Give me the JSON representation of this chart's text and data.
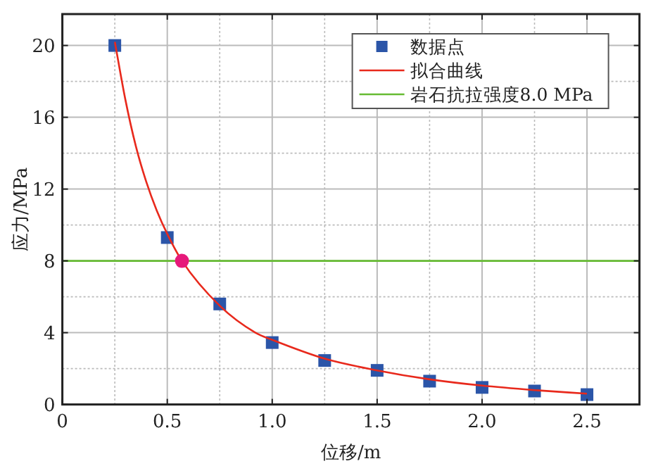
{
  "chart_data": {
    "type": "scatter",
    "xlabel": "位移/m",
    "ylabel": "应力/MPa",
    "xlim": [
      0,
      2.75
    ],
    "ylim": [
      0,
      21.75
    ],
    "xticks": [
      0,
      {
        "value": 0.5,
        "label": "0.5"
      },
      {
        "value": 1,
        "label": "1.0"
      },
      {
        "value": 1.5,
        "label": "1.5"
      },
      {
        "value": 2,
        "label": "2.0"
      },
      {
        "value": 2.5,
        "label": "2.5"
      }
    ],
    "yticks": [
      0,
      4,
      8,
      12,
      16,
      20
    ],
    "grid": true,
    "legend": "top right",
    "series": [
      {
        "name": "数据点",
        "type": "scatter",
        "marker": "square",
        "color": "#2b55a8",
        "x": [
          0.25,
          0.5,
          0.75,
          1,
          1.25,
          1.5,
          1.75,
          2,
          2.25,
          2.5
        ],
        "values": [
          20,
          9.3,
          5.6,
          3.45,
          2.45,
          1.9,
          1.3,
          0.95,
          0.75,
          0.55
        ]
      },
      {
        "name": "拟合曲线",
        "type": "line",
        "marker": "none",
        "color": "#e8291c",
        "x": [
          0.25,
          0.3,
          0.35,
          0.4,
          0.45,
          0.5,
          0.57,
          0.75,
          0.92,
          1,
          1.25,
          1.5,
          1.75,
          2,
          2.25,
          2.5
        ],
        "values": [
          20.2,
          17,
          14.4,
          12.4,
          10.8,
          9.5,
          8,
          5.5,
          4,
          3.6,
          2.55,
          1.9,
          1.4,
          1.05,
          0.8,
          0.6
        ]
      },
      {
        "type": "scatter",
        "marker": "circle",
        "color": "#e6197a",
        "x": [
          0.57
        ],
        "values": [
          8
        ]
      }
    ],
    "ref_lines": [
      {
        "axis": "y",
        "value": 8,
        "label": "岩石抗拉强度8.0 MPa",
        "color": "#66bb33"
      }
    ]
  }
}
